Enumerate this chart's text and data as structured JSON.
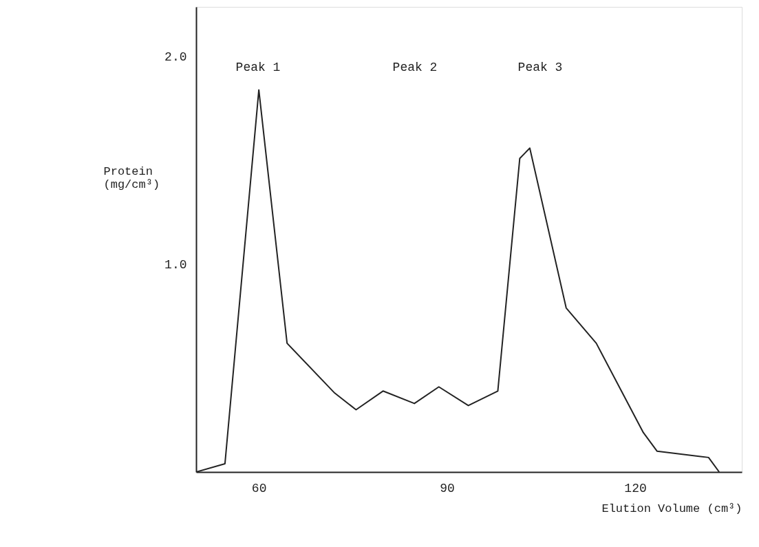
{
  "chart_data": {
    "type": "line",
    "xlabel": "Elution Volume (cm³)",
    "ylabel": "Protein\n(mg/cm³)",
    "x": [
      50,
      54.6,
      60,
      64.5,
      72.1,
      75.5,
      79.8,
      84.8,
      88.7,
      93.4,
      98.1,
      101.6,
      103.2,
      109,
      113.8,
      121.3,
      123.5,
      131.7,
      133.4
    ],
    "series": [
      {
        "color": "#222222",
        "values": [
          0,
          0.04,
          1.84,
          0.62,
          0.38,
          0.3,
          0.39,
          0.33,
          0.41,
          0.32,
          0.39,
          1.51,
          1.56,
          0.79,
          0.62,
          0.19,
          0.1,
          0.07,
          0
        ]
      }
    ],
    "xlim": [
      50,
      137
    ],
    "ylim": [
      0,
      2.24
    ],
    "xticks": [
      60,
      90,
      120
    ],
    "yticks": [
      {
        "value": 1,
        "label": "1.0"
      },
      {
        "value": 2,
        "label": "2.0"
      }
    ],
    "annotations": [
      "Peak 1",
      "Peak 2",
      "Peak 3"
    ],
    "grid": false,
    "marker": "none",
    "line_style": "solid"
  }
}
